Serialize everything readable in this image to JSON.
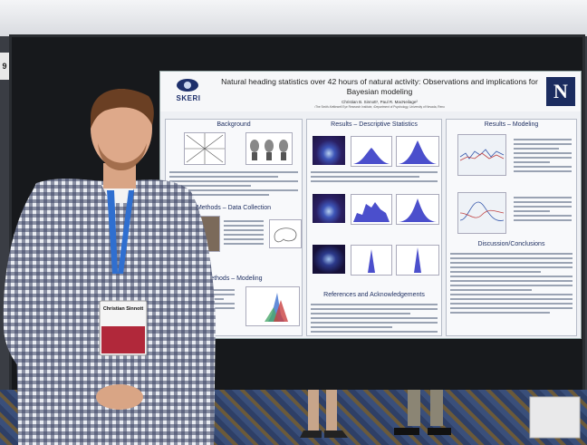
{
  "board": {
    "number": "9"
  },
  "poster": {
    "title": "Natural heading statistics over 42 hours of natural activity: Observations and implications for Bayesian modeling",
    "authors": "Christian B. Sinnott¹, Paul R. MacNeilage²",
    "affiliation": "¹The Smith-Kettlewell Eye Research Institute, ²Department of Psychology, University of Nevada, Reno",
    "logo_left": "SKERI",
    "logo_right": "N",
    "sections": {
      "background": "Background",
      "methods_data": "Methods – Data Collection",
      "methods_modeling": "Methods – Modeling",
      "results_desc": "Results – Descriptive Statistics",
      "references": "References and Acknowledgements",
      "results_modeling": "Results – Modeling",
      "discussion": "Discussion/Conclusions"
    }
  },
  "badge": {
    "name": "Christian Sinnott"
  },
  "colors": {
    "poster_accent": "#1b2c5f",
    "board": "#17191c",
    "shirt": "#2b3550",
    "lanyard": "#2f6fd0"
  }
}
